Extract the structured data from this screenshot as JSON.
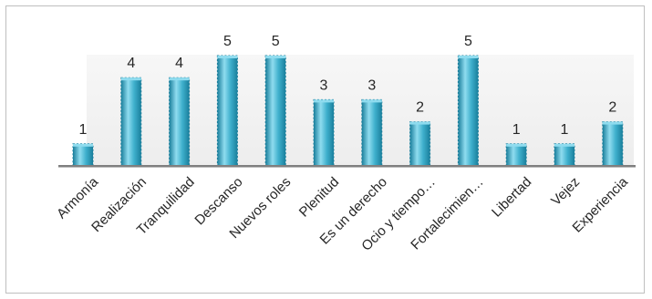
{
  "chart_data": {
    "type": "bar",
    "categories": [
      "Armonía",
      "Realización",
      "Tranquilidad",
      "Descanso",
      "Nuevos roles",
      "Plenitud",
      "Es un derecho",
      "Ocio y tiempo…",
      "Fortalecimien…",
      "Libertad",
      "Vejez",
      "Experiencia"
    ],
    "values": [
      1,
      4,
      4,
      5,
      5,
      3,
      3,
      2,
      5,
      1,
      1,
      2
    ],
    "title": "",
    "xlabel": "",
    "ylabel": "",
    "ylim": [
      0,
      5
    ],
    "grid": false,
    "legend": "none",
    "data_labels": true,
    "colors": {
      "bar_light": "#8fdcef",
      "bar_mid": "#3fb0cd",
      "bar_dark": "#1a7f9c",
      "plot_back": "#f2f2f2",
      "axis": "#7f7f7f",
      "border": "#bfbfbf"
    }
  }
}
